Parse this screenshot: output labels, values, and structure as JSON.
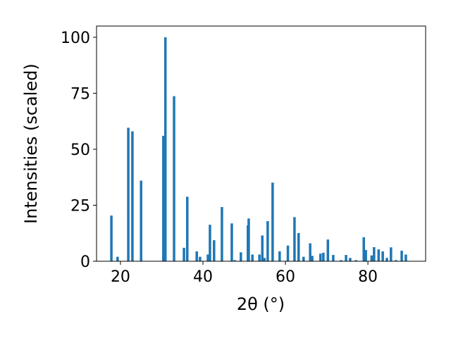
{
  "chart_data": {
    "type": "bar",
    "x_label": "2θ (°)",
    "y_label": "Intensities (scaled)",
    "x": [
      17.8,
      19.3,
      21.9,
      22.9,
      25.0,
      30.4,
      30.9,
      33.0,
      35.4,
      36.2,
      38.5,
      39.3,
      41.2,
      41.7,
      42.7,
      44.6,
      47.0,
      47.7,
      49.2,
      50.9,
      51.1,
      52.0,
      53.7,
      54.4,
      54.9,
      55.7,
      56.9,
      58.6,
      60.6,
      62.2,
      63.2,
      64.4,
      66.0,
      66.5,
      68.5,
      69.2,
      70.3,
      71.6,
      73.5,
      74.7,
      75.7,
      77.1,
      79.0,
      79.5,
      80.9,
      81.5,
      82.6,
      83.6,
      84.6,
      85.6,
      86.8,
      88.2,
      89.2
    ],
    "values": [
      20.4,
      2,
      59.6,
      58,
      36,
      56,
      100,
      73.7,
      6,
      28.8,
      4.4,
      2,
      3,
      16.3,
      9.4,
      24.2,
      16.9,
      0.5,
      4,
      16,
      19.1,
      3,
      3,
      11.5,
      1.5,
      17.9,
      35.1,
      4.4,
      7,
      19.7,
      12.6,
      2,
      8,
      2.4,
      3.4,
      3.8,
      9.7,
      2.8,
      0.5,
      2.8,
      1.5,
      0.5,
      10.7,
      5,
      2.6,
      6.3,
      5.3,
      4.4,
      1.5,
      6.2,
      0.5,
      4.7,
      3
    ],
    "color": "#1f77b4",
    "bar_width": 0.6,
    "xlim": [
      14.2,
      94.0
    ],
    "ylim": [
      0,
      105
    ],
    "xticks": [
      20,
      40,
      60,
      80
    ],
    "yticks": [
      0,
      25,
      50,
      75,
      100
    ]
  }
}
